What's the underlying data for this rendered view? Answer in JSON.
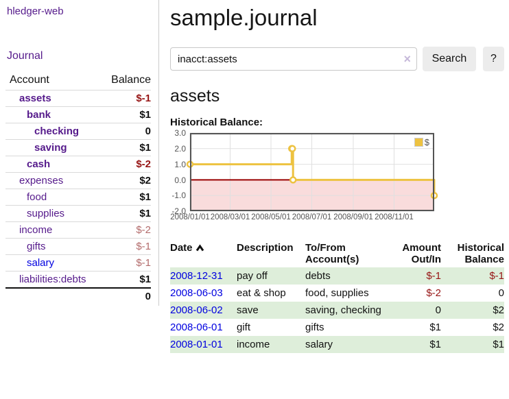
{
  "app": {
    "title": "hledger-web",
    "nav_journal": "Journal"
  },
  "sidebar": {
    "headers": {
      "account": "Account",
      "balance": "Balance"
    },
    "accounts": [
      {
        "label": "assets",
        "depth": 0,
        "emph": true,
        "link": "purple",
        "balance": "$-1",
        "style": "neg"
      },
      {
        "label": "bank",
        "depth": 1,
        "emph": true,
        "link": "purple",
        "balance": "$1",
        "style": "pos"
      },
      {
        "label": "checking",
        "depth": 2,
        "emph": true,
        "link": "purple",
        "balance": "0",
        "style": "pos"
      },
      {
        "label": "saving",
        "depth": 2,
        "emph": true,
        "link": "purple",
        "balance": "$1",
        "style": "pos"
      },
      {
        "label": "cash",
        "depth": 1,
        "emph": true,
        "link": "purple",
        "balance": "$-2",
        "style": "neg"
      },
      {
        "label": "expenses",
        "depth": 0,
        "emph": false,
        "link": "purple",
        "balance": "$2",
        "style": "pos"
      },
      {
        "label": "food",
        "depth": 1,
        "emph": false,
        "link": "purple",
        "balance": "$1",
        "style": "pos"
      },
      {
        "label": "supplies",
        "depth": 1,
        "emph": false,
        "link": "purple",
        "balance": "$1",
        "style": "pos"
      },
      {
        "label": "income",
        "depth": 0,
        "emph": false,
        "link": "purple",
        "balance": "$-2",
        "style": "neg-muted"
      },
      {
        "label": "gifts",
        "depth": 1,
        "emph": false,
        "link": "purple",
        "balance": "$-1",
        "style": "neg-muted"
      },
      {
        "label": "salary",
        "depth": 1,
        "emph": false,
        "link": "blue",
        "balance": "$-1",
        "style": "neg-muted"
      },
      {
        "label": "liabilities:debts",
        "depth": 0,
        "emph": false,
        "link": "purple",
        "balance": "$1",
        "style": "pos"
      }
    ],
    "total": "0"
  },
  "header": {
    "title": "sample.journal"
  },
  "search": {
    "value": "inacct:assets",
    "clear_icon": "×",
    "button": "Search",
    "help_button": "?"
  },
  "account_page": {
    "title": "assets",
    "chart_heading": "Historical Balance:"
  },
  "chart_data": {
    "type": "line",
    "step": true,
    "title": "Historical Balance:",
    "x": [
      "2008-01-01",
      "2008-06-01",
      "2008-06-02",
      "2008-06-03",
      "2008-12-31"
    ],
    "values": [
      1,
      2,
      2,
      0,
      -1
    ],
    "xlim": [
      "2008-01-01",
      "2008-12-31"
    ],
    "ylim": [
      -2,
      3
    ],
    "yticks": [
      "3.0",
      "2.0",
      "1.0",
      "0.0",
      "-1.0",
      "-2.0"
    ],
    "xticks": [
      "2008/01/01",
      "2008/03/01",
      "2008/05/01",
      "2008/07/01",
      "2008/09/01",
      "2008/11/01"
    ],
    "legend": [
      {
        "label": "$",
        "color": "#edc240"
      }
    ],
    "legend_position": "top-right",
    "grid": true,
    "series_color": "#edc240",
    "marker_fill": "#ffffff",
    "grid_color": "#e0e0e0",
    "border_color": "#545454",
    "negative_region_color": "#f9dcdc",
    "zero_line_color": "#990000"
  },
  "register": {
    "headers": {
      "date": "Date",
      "description": "Description",
      "accounts": "To/From Account(s)",
      "amount": "Amount Out/In",
      "balance": "Historical Balance"
    },
    "rows": [
      {
        "date": "2008-12-31",
        "description": "pay off",
        "accounts": "debts",
        "amount": "$-1",
        "amount_neg": true,
        "balance": "$-1",
        "balance_neg": true,
        "shaded": true
      },
      {
        "date": "2008-06-03",
        "description": "eat & shop",
        "accounts": "food, supplies",
        "amount": "$-2",
        "amount_neg": true,
        "balance": "0",
        "balance_neg": false,
        "shaded": false
      },
      {
        "date": "2008-06-02",
        "description": "save",
        "accounts": "saving, checking",
        "amount": "0",
        "amount_neg": false,
        "balance": "$2",
        "balance_neg": false,
        "shaded": true
      },
      {
        "date": "2008-06-01",
        "description": "gift",
        "accounts": "gifts",
        "amount": "$1",
        "amount_neg": false,
        "balance": "$2",
        "balance_neg": false,
        "shaded": false
      },
      {
        "date": "2008-01-01",
        "description": "income",
        "accounts": "salary",
        "amount": "$1",
        "amount_neg": false,
        "balance": "$1",
        "balance_neg": false,
        "shaded": true
      }
    ]
  },
  "colors": {
    "link_purple": "#551a8b",
    "link_blue": "#0000e0",
    "negative": "#961414",
    "negative_muted": "#b36b6b",
    "row_shade_green": "#deeeda",
    "button_bg": "#ececec"
  }
}
